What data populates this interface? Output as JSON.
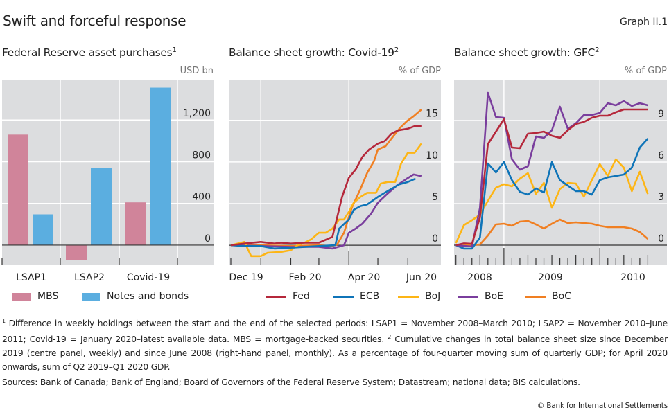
{
  "header": {
    "title": "Swift and forceful response",
    "graph_number": "Graph II.1"
  },
  "colors": {
    "panel_bg": "#dcdddf",
    "grid": "#ffffff",
    "MBS": "#d0849a",
    "Notes and bonds": "#5baee0",
    "Fed": "#b5283b",
    "ECB": "#0f74b8",
    "BoJ": "#fdb515",
    "BoE": "#7a3e9d",
    "BoC": "#f07f22"
  },
  "chart_data": [
    {
      "type": "bar",
      "title": "Federal Reserve asset purchases",
      "title_sup": "1",
      "unit": "USD bn",
      "categories": [
        "LSAP1",
        "LSAP2",
        "Covid-19"
      ],
      "series": [
        {
          "name": "MBS",
          "values": [
            1060,
            -140,
            410
          ]
        },
        {
          "name": "Notes and bonds",
          "values": [
            295,
            740,
            1510
          ]
        }
      ],
      "yticks": [
        0,
        400,
        800,
        1200
      ],
      "ytick_labels": [
        "0",
        "400",
        "800",
        "1,200"
      ],
      "ylim": [
        -193,
        1580
      ],
      "grid": true,
      "legend": "bottom"
    },
    {
      "type": "line",
      "title": "Balance sheet growth: Covid-19",
      "title_sup": "2",
      "unit": "% of GDP",
      "xlim": [
        "2019-12-01",
        "2020-07-12"
      ],
      "ylim": [
        -2.4,
        19.8
      ],
      "yticks": [
        0,
        5,
        10,
        15
      ],
      "ytick_labels": [
        "0",
        "5",
        "10",
        "15"
      ],
      "xtick_labels": [
        "Dec 19",
        "Feb 20",
        "Apr 20",
        "Jun 20"
      ],
      "grid": true,
      "legend": "bottom",
      "series": [
        {
          "name": "Fed",
          "points": [
            [
              "2019-12-01",
              0
            ],
            [
              "2019-12-15",
              0.2
            ],
            [
              "2020-01-01",
              0.4
            ],
            [
              "2020-01-15",
              0.2
            ],
            [
              "2020-01-22",
              0.3
            ],
            [
              "2020-02-01",
              0.2
            ],
            [
              "2020-02-15",
              0.3
            ],
            [
              "2020-03-01",
              0.3
            ],
            [
              "2020-03-15",
              1.0
            ],
            [
              "2020-03-25",
              5.8
            ],
            [
              "2020-04-01",
              8.1
            ],
            [
              "2020-04-08",
              9.1
            ],
            [
              "2020-04-15",
              10.6
            ],
            [
              "2020-04-22",
              11.5
            ],
            [
              "2020-05-01",
              12.2
            ],
            [
              "2020-05-08",
              12.5
            ],
            [
              "2020-05-15",
              13.4
            ],
            [
              "2020-05-22",
              13.8
            ],
            [
              "2020-06-01",
              14.0
            ],
            [
              "2020-06-08",
              14.3
            ],
            [
              "2020-06-15",
              14.3
            ]
          ]
        },
        {
          "name": "ECB",
          "points": [
            [
              "2019-12-01",
              0
            ],
            [
              "2019-12-15",
              -0.1
            ],
            [
              "2020-01-01",
              -0.1
            ],
            [
              "2020-01-15",
              -0.4
            ],
            [
              "2020-02-01",
              -0.3
            ],
            [
              "2020-03-01",
              -0.1
            ],
            [
              "2020-03-18",
              0
            ],
            [
              "2020-03-22",
              2.0
            ],
            [
              "2020-04-01",
              3.1
            ],
            [
              "2020-04-06",
              4.25
            ],
            [
              "2020-04-13",
              4.7
            ],
            [
              "2020-04-20",
              4.9
            ],
            [
              "2020-05-01",
              5.8
            ],
            [
              "2020-05-11",
              6.5
            ],
            [
              "2020-05-23",
              7.3
            ],
            [
              "2020-06-01",
              7.6
            ],
            [
              "2020-06-09",
              8.0
            ]
          ]
        },
        {
          "name": "BoJ",
          "points": [
            [
              "2019-12-01",
              0
            ],
            [
              "2019-12-15",
              0.4
            ],
            [
              "2019-12-22",
              -1.3
            ],
            [
              "2020-01-01",
              -1.3
            ],
            [
              "2020-01-08",
              -0.9
            ],
            [
              "2020-01-22",
              -0.8
            ],
            [
              "2020-02-01",
              -0.6
            ],
            [
              "2020-02-08",
              0
            ],
            [
              "2020-02-15",
              0.3
            ],
            [
              "2020-02-22",
              0.7
            ],
            [
              "2020-03-01",
              1.5
            ],
            [
              "2020-03-08",
              1.5
            ],
            [
              "2020-03-15",
              2.0
            ],
            [
              "2020-03-22",
              3.1
            ],
            [
              "2020-03-27",
              3.1
            ],
            [
              "2020-04-01",
              4.0
            ],
            [
              "2020-04-06",
              5.1
            ],
            [
              "2020-04-13",
              5.8
            ],
            [
              "2020-04-20",
              6.3
            ],
            [
              "2020-04-29",
              6.3
            ],
            [
              "2020-05-04",
              7.4
            ],
            [
              "2020-05-11",
              7.6
            ],
            [
              "2020-05-19",
              7.6
            ],
            [
              "2020-05-25",
              9.8
            ],
            [
              "2020-06-01",
              11.1
            ],
            [
              "2020-06-08",
              11.1
            ],
            [
              "2020-06-15",
              12.2
            ]
          ]
        },
        {
          "name": "BoE",
          "points": [
            [
              "2019-12-01",
              0
            ],
            [
              "2020-01-01",
              -0.1
            ],
            [
              "2020-02-01",
              -0.2
            ],
            [
              "2020-03-01",
              -0.2
            ],
            [
              "2020-03-15",
              -0.4
            ],
            [
              "2020-03-27",
              0
            ],
            [
              "2020-04-01",
              1.5
            ],
            [
              "2020-04-08",
              2.0
            ],
            [
              "2020-04-15",
              2.6
            ],
            [
              "2020-04-24",
              3.8
            ],
            [
              "2020-05-01",
              5.1
            ],
            [
              "2020-05-11",
              6.2
            ],
            [
              "2020-05-21",
              7.2
            ],
            [
              "2020-05-31",
              8.0
            ],
            [
              "2020-06-07",
              8.5
            ],
            [
              "2020-06-15",
              8.3
            ]
          ]
        },
        {
          "name": "BoC",
          "points": [
            [
              "2019-12-01",
              0
            ],
            [
              "2020-01-01",
              0
            ],
            [
              "2020-02-01",
              -0.1
            ],
            [
              "2020-03-01",
              0
            ],
            [
              "2020-03-15",
              -0.1
            ],
            [
              "2020-03-20",
              0.1
            ],
            [
              "2020-03-27",
              1.5
            ],
            [
              "2020-04-04",
              4.5
            ],
            [
              "2020-04-13",
              6.75
            ],
            [
              "2020-04-20",
              8.7
            ],
            [
              "2020-04-27",
              10.1
            ],
            [
              "2020-05-01",
              11.5
            ],
            [
              "2020-05-09",
              11.9
            ],
            [
              "2020-05-17",
              13.1
            ],
            [
              "2020-05-24",
              14.1
            ],
            [
              "2020-05-31",
              14.9
            ],
            [
              "2020-06-07",
              15.5
            ],
            [
              "2020-06-15",
              16.3
            ]
          ]
        }
      ]
    },
    {
      "type": "line",
      "title": "Balance sheet growth: GFC",
      "title_sup": "2",
      "unit": "% of GDP",
      "x": [
        "2008-06",
        "2008-07",
        "2008-08",
        "2008-09",
        "2008-10",
        "2008-11",
        "2008-12",
        "2009-01",
        "2009-02",
        "2009-03",
        "2009-04",
        "2009-05",
        "2009-06",
        "2009-07",
        "2009-08",
        "2009-09",
        "2009-10",
        "2009-11",
        "2009-12",
        "2010-01",
        "2010-02",
        "2010-03",
        "2010-04",
        "2010-05",
        "2010-06"
      ],
      "ylim": [
        -1.45,
        11.9
      ],
      "yticks": [
        0,
        3,
        6,
        9
      ],
      "ytick_labels": [
        "0",
        "3",
        "6",
        "9"
      ],
      "xtick_labels": [
        "2008",
        "2009",
        "2010"
      ],
      "grid": true,
      "legend": "bottom",
      "series": [
        {
          "name": "Fed",
          "values": [
            0,
            0.13,
            0.1,
            2.0,
            7.3,
            8.2,
            9.1,
            7.05,
            7.0,
            8.05,
            8.1,
            8.2,
            7.9,
            7.75,
            8.3,
            8.75,
            8.9,
            9.2,
            9.35,
            9.35,
            9.6,
            9.8,
            9.8,
            9.8,
            9.8
          ]
        },
        {
          "name": "ECB",
          "values": [
            0,
            -0.25,
            -0.25,
            0.55,
            5.9,
            5.25,
            6.0,
            4.7,
            3.85,
            3.65,
            4.1,
            3.8,
            6.0,
            4.7,
            4.3,
            3.9,
            3.9,
            3.65,
            4.7,
            4.9,
            5.0,
            5.1,
            5.6,
            7.05,
            7.7
          ]
        },
        {
          "name": "BoJ",
          "values": [
            0.15,
            1.45,
            1.8,
            2.2,
            3.2,
            4.15,
            4.4,
            4.25,
            4.8,
            5.2,
            3.7,
            4.5,
            2.7,
            4.05,
            4.5,
            4.45,
            3.5,
            4.7,
            5.85,
            5.0,
            6.2,
            5.6,
            3.9,
            5.3,
            3.7
          ]
        },
        {
          "name": "BoE",
          "values": [
            0,
            -0.05,
            -0.1,
            2.7,
            11.0,
            9.25,
            9.2,
            6.2,
            5.45,
            5.7,
            7.85,
            7.75,
            8.3,
            10.0,
            8.4,
            8.8,
            9.4,
            9.4,
            9.55,
            10.25,
            10.1,
            10.4,
            10.05,
            10.25,
            10.1
          ]
        },
        {
          "name": "BoC",
          "values": [
            0,
            0,
            0,
            0.05,
            0.7,
            1.5,
            1.55,
            1.4,
            1.7,
            1.75,
            1.5,
            1.2,
            1.55,
            1.85,
            1.6,
            1.65,
            1.6,
            1.55,
            1.4,
            1.3,
            1.3,
            1.3,
            1.2,
            0.95,
            0.45
          ]
        }
      ]
    }
  ],
  "legend": {
    "bars": [
      "MBS",
      "Notes and bonds"
    ],
    "lines": [
      "Fed",
      "ECB",
      "BoJ",
      "BoE",
      "BoC"
    ]
  },
  "footnotes": {
    "n1_mark": "1",
    "n1_text": " Difference in weekly holdings between the start and the end of the selected periods: LSAP1 = November 2008–March 2010; LSAP2 = November 2010–June 2011; Covid-19 = January 2020–latest available data. MBS = mortgage-backed securities.  ",
    "n2_mark": "2",
    "n2_text": " Cumulative changes in total balance sheet size since December 2019 (centre panel, weekly) and since June 2008 (right-hand panel, monthly). As a percentage of four-quarter moving sum of quarterly GDP; for April 2020 onwards, sum of Q2 2019–Q1 2020 GDP."
  },
  "sources": "Sources: Bank of Canada; Bank of England; Board of Governors of the Federal Reserve System; Datastream; national data; BIS calculations.",
  "copyright": "© Bank for International Settlements"
}
